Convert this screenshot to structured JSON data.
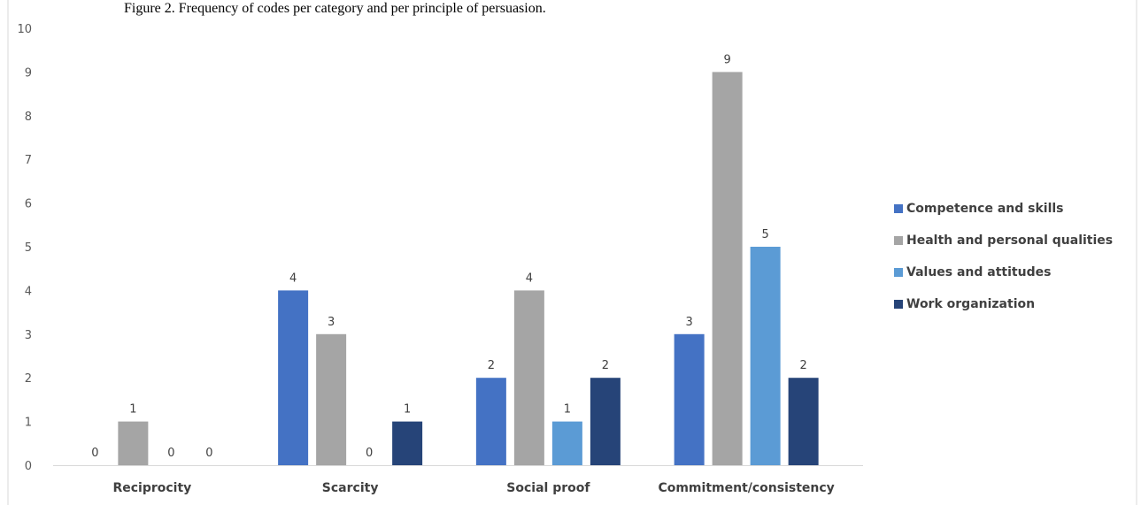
{
  "caption": "Figure 2. Frequency of codes per category and per principle of persuasion.",
  "chart_data": {
    "type": "bar",
    "categories": [
      "Reciprocity",
      "Scarcity",
      "Social proof",
      "Commitment/consistency"
    ],
    "series": [
      {
        "name": "Competence and skills",
        "values": [
          0,
          4,
          2,
          3
        ],
        "color": "#4472C4"
      },
      {
        "name": "Health and personal qualities",
        "values": [
          1,
          3,
          4,
          9
        ],
        "color": "#A5A5A5"
      },
      {
        "name": "Values and attitudes",
        "values": [
          0,
          0,
          1,
          5
        ],
        "color": "#5B9BD5"
      },
      {
        "name": "Work organization",
        "values": [
          0,
          1,
          2,
          2
        ],
        "color": "#264478"
      }
    ],
    "ylim": [
      0,
      10
    ],
    "yticks": [
      0,
      1,
      2,
      3,
      4,
      5,
      6,
      7,
      8,
      9,
      10
    ],
    "title": "",
    "xlabel": "",
    "ylabel": "",
    "legend_position": "right",
    "grid": false
  }
}
